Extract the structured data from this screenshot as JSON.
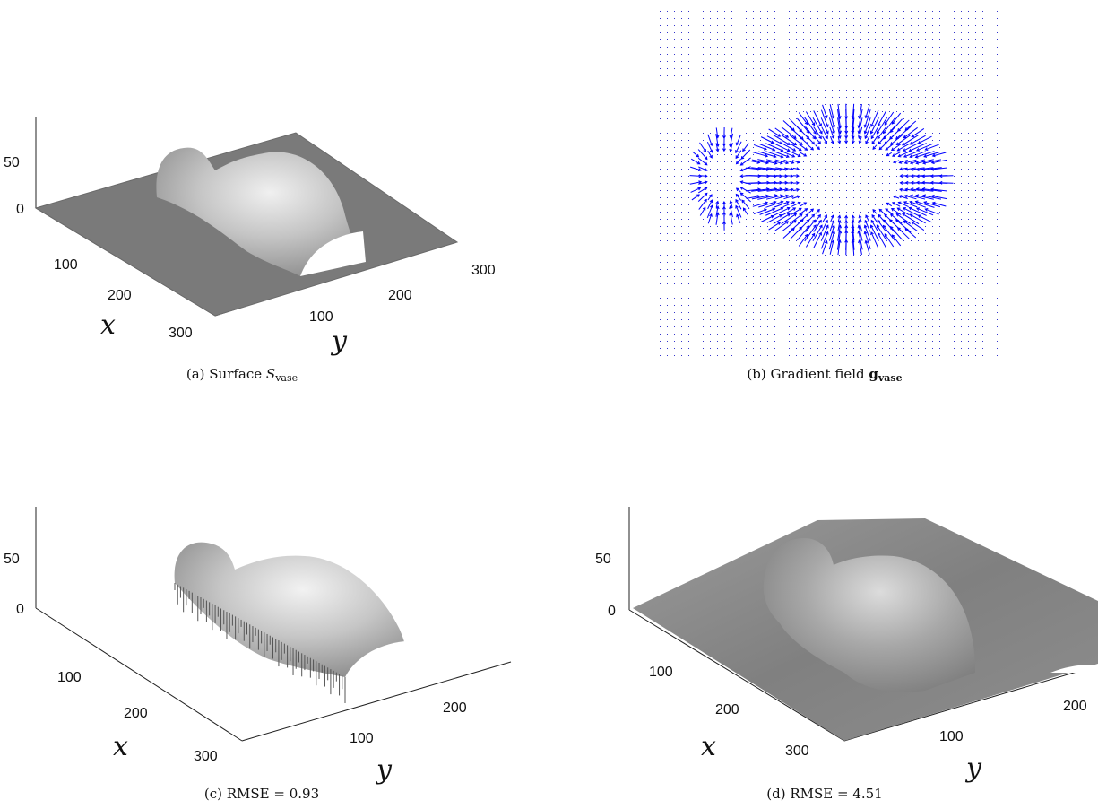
{
  "panels": [
    {
      "id": "a",
      "caption_prefix": "(a) Surface ",
      "caption_math": "S",
      "caption_sub": "vase",
      "z_ticks": [
        "50",
        "0"
      ],
      "x_ticks": [
        "100",
        "200",
        "300"
      ],
      "y_ticks": [
        "100",
        "200",
        "300"
      ],
      "x_label": "x",
      "y_label": "y"
    },
    {
      "id": "b",
      "caption_prefix": "(b) Gradient field ",
      "caption_math": "g",
      "caption_sub": "vase"
    },
    {
      "id": "c",
      "caption": "(c) RMSE = 0.93",
      "z_ticks": [
        "50",
        "0"
      ],
      "x_ticks": [
        "100",
        "200",
        "300"
      ],
      "y_ticks": [
        "100",
        "200"
      ],
      "x_label": "x",
      "y_label": "y"
    },
    {
      "id": "d",
      "caption": "(d) RMSE = 4.51",
      "z_ticks": [
        "50",
        "0"
      ],
      "x_ticks": [
        "100",
        "200",
        "300"
      ],
      "y_ticks": [
        "100",
        "200"
      ],
      "x_label": "x",
      "y_label": "y"
    }
  ],
  "colors": {
    "surface": "#7a7a7a",
    "vase_light": "#d8d8d8",
    "vase_mid": "#a9a9a9",
    "arrows": "#0000ff",
    "grid_dots": "#3333cc"
  }
}
